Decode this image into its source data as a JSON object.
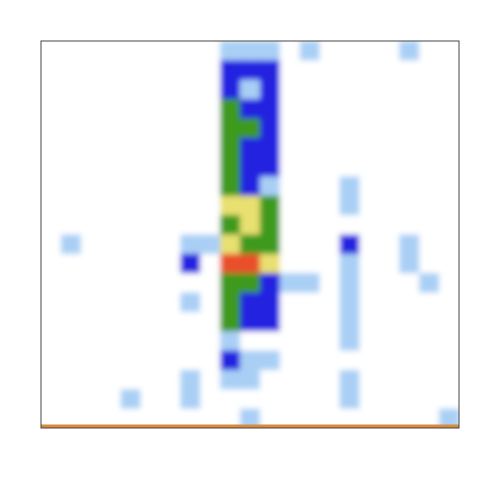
{
  "chart_data": {
    "type": "heatmap",
    "colors": [
      "#ffffff",
      "#a9cff5",
      "#2020e0",
      "#3c9a1e",
      "#e8e070",
      "#e8502a"
    ],
    "z": [
      [
        0,
        0,
        0,
        0,
        0,
        0,
        0,
        0,
        0,
        1,
        1,
        1,
        0,
        1,
        0,
        0,
        0,
        0,
        1,
        0,
        0
      ],
      [
        0,
        0,
        0,
        0,
        0,
        0,
        0,
        0,
        0,
        2,
        2,
        2,
        0,
        0,
        0,
        0,
        0,
        0,
        0,
        0,
        0
      ],
      [
        0,
        0,
        0,
        0,
        0,
        0,
        0,
        0,
        0,
        2,
        1,
        2,
        0,
        0,
        0,
        0,
        0,
        0,
        0,
        0,
        0
      ],
      [
        0,
        0,
        0,
        0,
        0,
        0,
        0,
        0,
        0,
        3,
        2,
        2,
        0,
        0,
        0,
        0,
        0,
        0,
        0,
        0,
        0
      ],
      [
        0,
        0,
        0,
        0,
        0,
        0,
        0,
        0,
        0,
        3,
        3,
        2,
        0,
        0,
        0,
        0,
        0,
        0,
        0,
        0,
        0
      ],
      [
        0,
        0,
        0,
        0,
        0,
        0,
        0,
        0,
        0,
        3,
        2,
        2,
        0,
        0,
        0,
        0,
        0,
        0,
        0,
        0,
        0
      ],
      [
        0,
        0,
        0,
        0,
        0,
        0,
        0,
        0,
        0,
        3,
        2,
        2,
        0,
        0,
        0,
        0,
        0,
        0,
        0,
        0,
        0
      ],
      [
        0,
        0,
        0,
        0,
        0,
        0,
        0,
        0,
        0,
        3,
        2,
        1,
        0,
        0,
        0,
        1,
        0,
        0,
        0,
        0,
        0
      ],
      [
        0,
        0,
        0,
        0,
        0,
        0,
        0,
        0,
        0,
        4,
        4,
        3,
        0,
        0,
        0,
        1,
        0,
        0,
        0,
        0,
        0
      ],
      [
        0,
        0,
        0,
        0,
        0,
        0,
        0,
        0,
        0,
        3,
        4,
        3,
        0,
        0,
        0,
        0,
        0,
        0,
        0,
        0,
        0
      ],
      [
        0,
        1,
        0,
        0,
        0,
        0,
        0,
        1,
        1,
        4,
        3,
        3,
        0,
        0,
        0,
        2,
        0,
        0,
        1,
        0,
        0
      ],
      [
        0,
        0,
        0,
        0,
        0,
        0,
        0,
        2,
        0,
        5,
        5,
        4,
        0,
        0,
        0,
        1,
        0,
        0,
        1,
        0,
        0
      ],
      [
        0,
        0,
        0,
        0,
        0,
        0,
        0,
        0,
        0,
        3,
        3,
        2,
        1,
        1,
        0,
        1,
        0,
        0,
        0,
        1,
        0
      ],
      [
        0,
        0,
        0,
        0,
        0,
        0,
        0,
        1,
        0,
        3,
        2,
        2,
        0,
        0,
        0,
        1,
        0,
        0,
        0,
        0,
        0
      ],
      [
        0,
        0,
        0,
        0,
        0,
        0,
        0,
        0,
        0,
        3,
        2,
        2,
        0,
        0,
        0,
        1,
        0,
        0,
        0,
        0,
        0
      ],
      [
        0,
        0,
        0,
        0,
        0,
        0,
        0,
        0,
        0,
        1,
        0,
        0,
        0,
        0,
        0,
        1,
        0,
        0,
        0,
        0,
        0
      ],
      [
        0,
        0,
        0,
        0,
        0,
        0,
        0,
        0,
        0,
        2,
        1,
        1,
        0,
        0,
        0,
        0,
        0,
        0,
        0,
        0,
        0
      ],
      [
        0,
        0,
        0,
        0,
        0,
        0,
        0,
        1,
        0,
        1,
        1,
        0,
        0,
        0,
        0,
        1,
        0,
        0,
        0,
        0,
        0
      ],
      [
        0,
        0,
        0,
        0,
        1,
        0,
        0,
        1,
        0,
        0,
        0,
        0,
        0,
        0,
        0,
        1,
        0,
        0,
        0,
        0,
        0
      ],
      [
        0,
        0,
        0,
        0,
        0,
        0,
        0,
        0,
        0,
        0,
        1,
        0,
        0,
        0,
        0,
        0,
        0,
        0,
        0,
        0,
        1
      ]
    ]
  }
}
